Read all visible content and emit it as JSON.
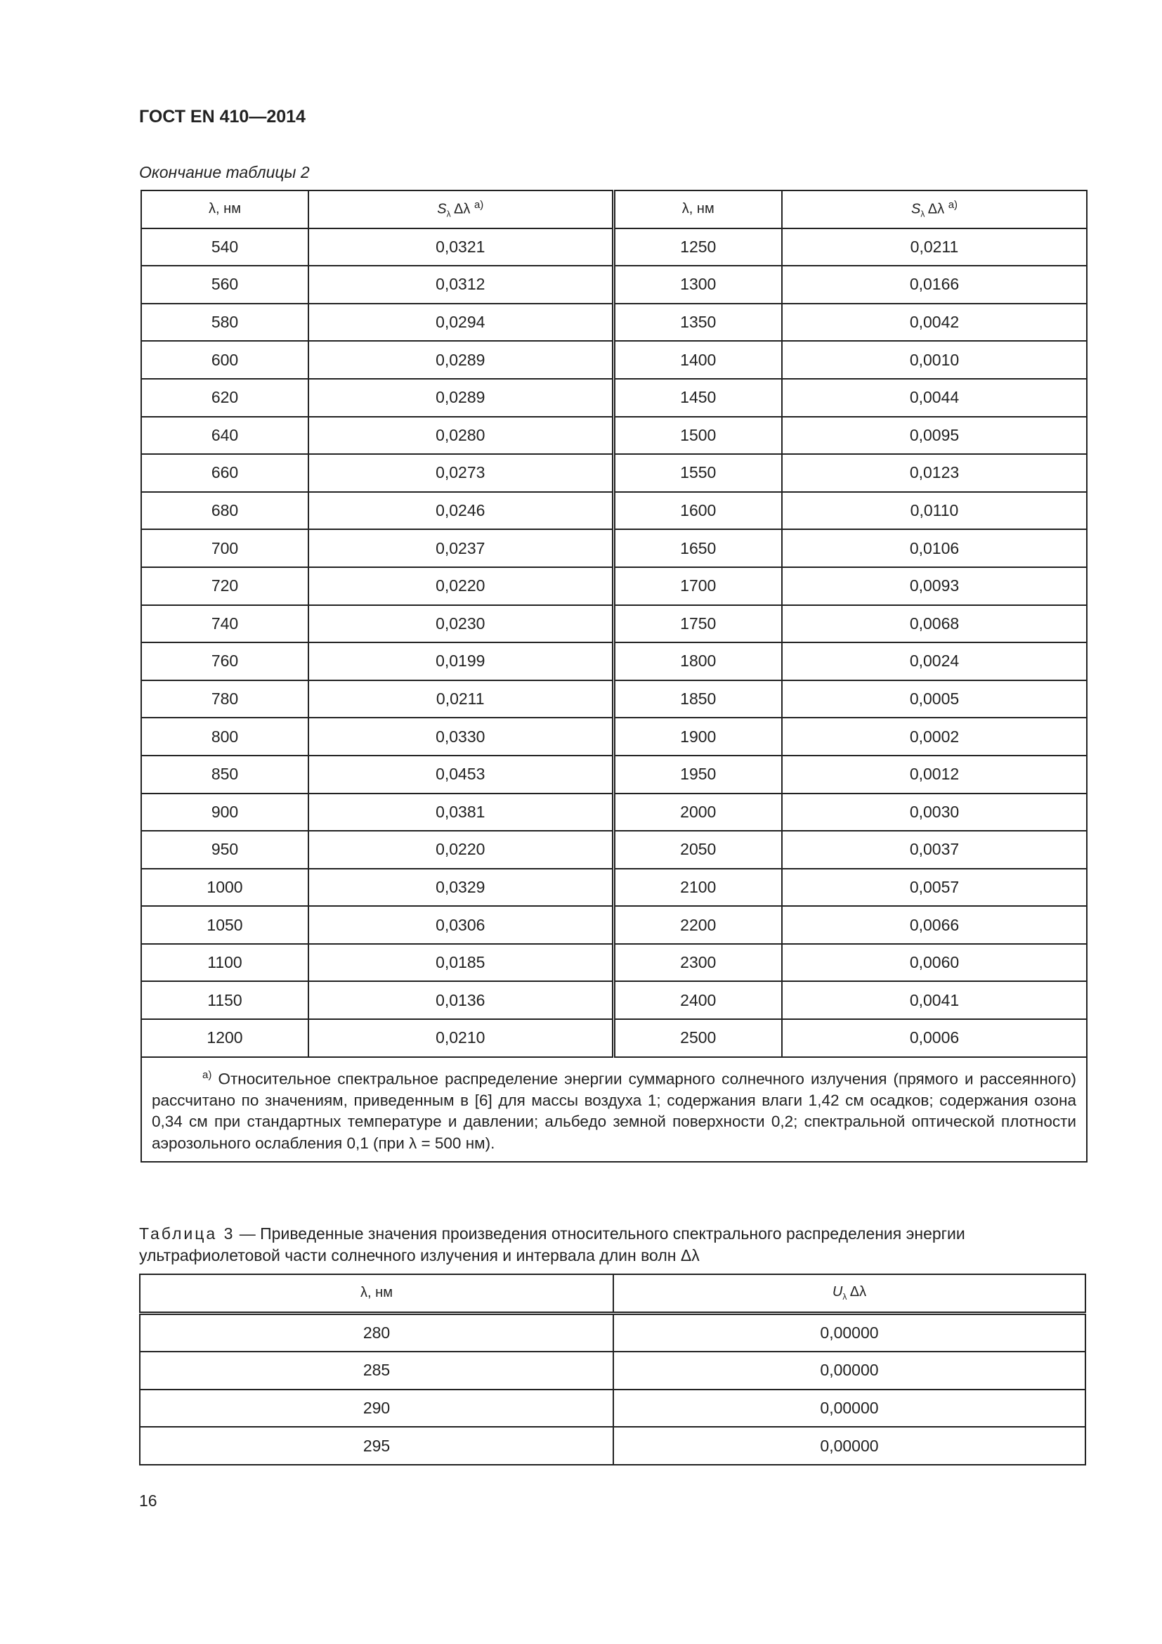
{
  "header": "ГОСТ EN 410—2014",
  "table2": {
    "continuation": "Окончание таблицы 2",
    "col_lambda": "λ, нм",
    "col_s": "Sλ Δλ",
    "col_s_sub": "λ",
    "col_s_main": "S",
    "col_s_delta": " Δλ ",
    "col_s_note": "а)",
    "left_rows": [
      [
        "540",
        "0,0321"
      ],
      [
        "560",
        "0,0312"
      ],
      [
        "580",
        "0,0294"
      ],
      [
        "600",
        "0,0289"
      ],
      [
        "620",
        "0,0289"
      ],
      [
        "640",
        "0,0280"
      ],
      [
        "660",
        "0,0273"
      ],
      [
        "680",
        "0,0246"
      ],
      [
        "700",
        "0,0237"
      ],
      [
        "720",
        "0,0220"
      ],
      [
        "740",
        "0,0230"
      ],
      [
        "760",
        "0,0199"
      ],
      [
        "780",
        "0,0211"
      ],
      [
        "800",
        "0,0330"
      ],
      [
        "850",
        "0,0453"
      ],
      [
        "900",
        "0,0381"
      ],
      [
        "950",
        "0,0220"
      ],
      [
        "1000",
        "0,0329"
      ],
      [
        "1050",
        "0,0306"
      ],
      [
        "1100",
        "0,0185"
      ],
      [
        "1150",
        "0,0136"
      ],
      [
        "1200",
        "0,0210"
      ]
    ],
    "right_rows": [
      [
        "1250",
        "0,0211"
      ],
      [
        "1300",
        "0,0166"
      ],
      [
        "1350",
        "0,0042"
      ],
      [
        "1400",
        "0,0010"
      ],
      [
        "1450",
        "0,0044"
      ],
      [
        "1500",
        "0,0095"
      ],
      [
        "1550",
        "0,0123"
      ],
      [
        "1600",
        "0,0110"
      ],
      [
        "1650",
        "0,0106"
      ],
      [
        "1700",
        "0,0093"
      ],
      [
        "1750",
        "0,0068"
      ],
      [
        "1800",
        "0,0024"
      ],
      [
        "1850",
        "0,0005"
      ],
      [
        "1900",
        "0,0002"
      ],
      [
        "1950",
        "0,0012"
      ],
      [
        "2000",
        "0,0030"
      ],
      [
        "2050",
        "0,0037"
      ],
      [
        "2100",
        "0,0057"
      ],
      [
        "2200",
        "0,0066"
      ],
      [
        "2300",
        "0,0060"
      ],
      [
        "2400",
        "0,0041"
      ],
      [
        "2500",
        "0,0006"
      ]
    ],
    "footnote_mark": "а)",
    "footnote": " Относительное спектральное распределение энергии суммарного солнечного излучения (прямого и рассеянного) рассчитано по значениям, приведенным в [6] для массы воздуха 1; содержания влаги 1,42 см осадков; содержания озона 0,34 см при стандартных температуре и давлении; альбедо земной поверхности 0,2; спектральной оптической плотности аэрозольного ослабления 0,1 (при λ = 500 нм)."
  },
  "table3": {
    "label": "Таблица 3",
    "caption": " — Приведенные значения произведения относительного спектрального распределения энергии ультрафиолетовой части солнечного излучения и интервала длин волн Δλ",
    "col_lambda": "λ, нм",
    "col_u_main": "U",
    "col_u_sub": "λ",
    "col_u_delta": " Δλ",
    "rows": [
      [
        "280",
        "0,00000"
      ],
      [
        "285",
        "0,00000"
      ],
      [
        "290",
        "0,00000"
      ],
      [
        "295",
        "0,00000"
      ]
    ]
  },
  "page_number": "16"
}
